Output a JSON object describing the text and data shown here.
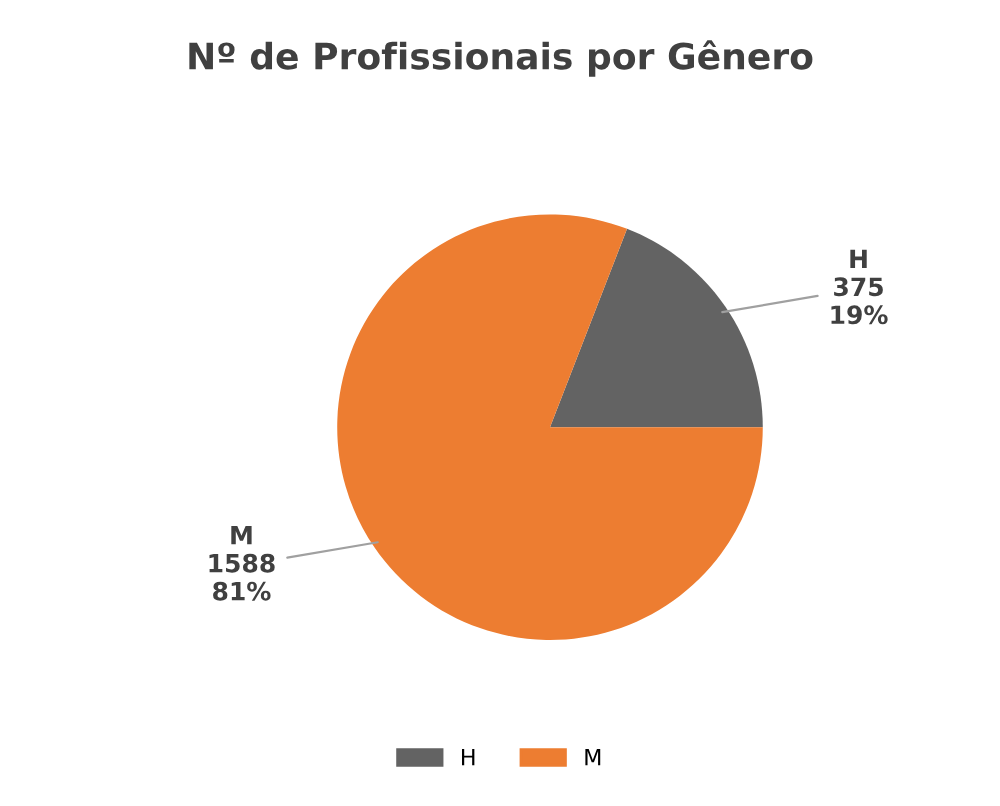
{
  "chart_data": {
    "type": "pie",
    "title": "Nº de Profissionais por Gênero",
    "categories": [
      "H",
      "M"
    ],
    "values": [
      375,
      1588
    ],
    "colors": [
      "#636363",
      "#ed7d31"
    ],
    "value_labels": [
      "375\n19%",
      "1588\n81%"
    ],
    "legend": "bottom"
  }
}
